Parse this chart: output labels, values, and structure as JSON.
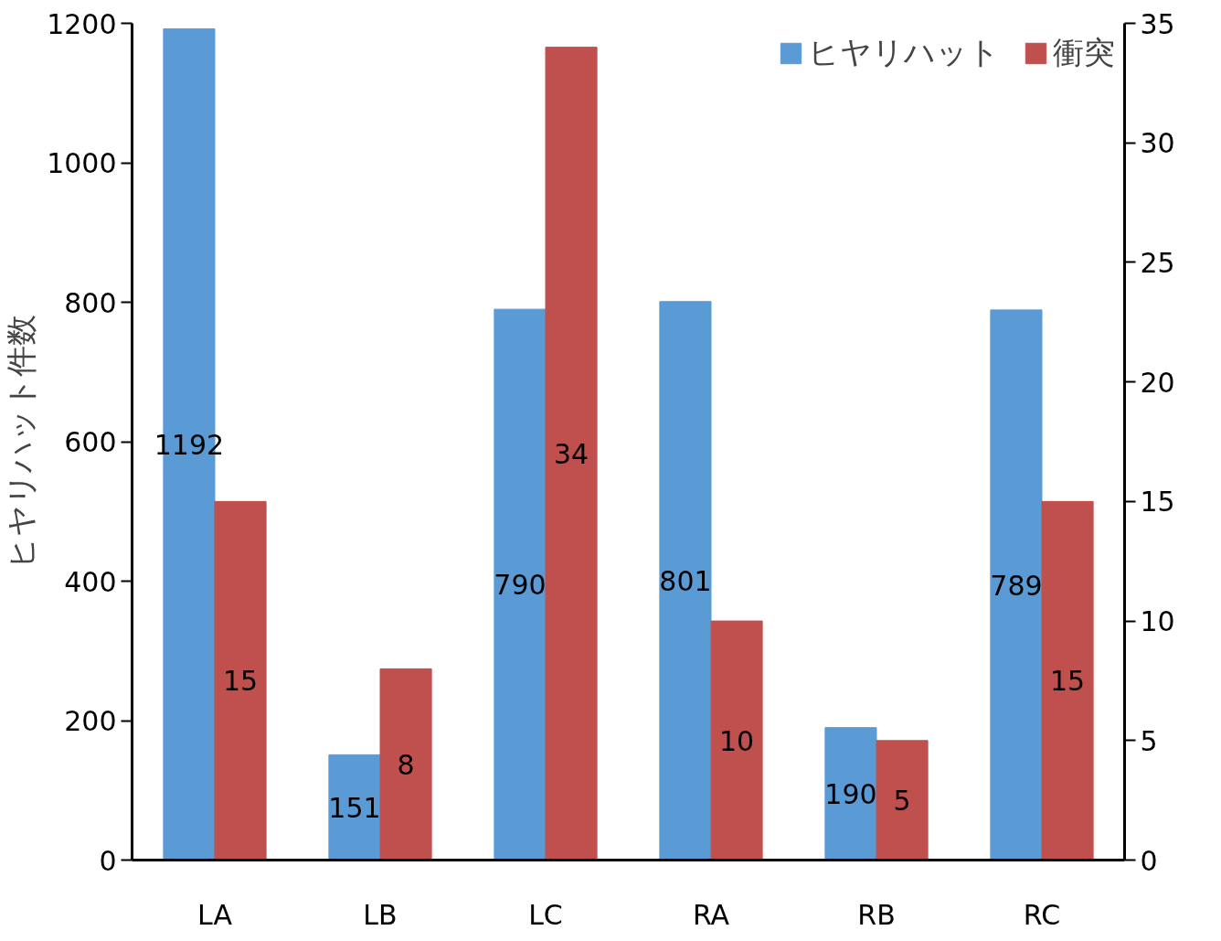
{
  "chart_data": {
    "type": "bar",
    "ylabel": "ヒヤリハット件数",
    "categories": [
      "LA",
      "LB",
      "LC",
      "RA",
      "RB",
      "RC"
    ],
    "series": [
      {
        "name": "ヒヤリハット",
        "color": "#5b9bd5",
        "values": [
          1192,
          151,
          790,
          801,
          190,
          789
        ]
      },
      {
        "name": "衝突",
        "color": "#c0504d",
        "values": [
          15,
          8,
          34,
          10,
          5,
          15
        ],
        "axis": "y2"
      }
    ],
    "ylim": [
      0,
      1200
    ],
    "yticks": [
      0,
      200,
      400,
      600,
      800,
      1000,
      1200
    ],
    "y2lim": [
      0,
      35
    ],
    "y2ticks": [
      0,
      5,
      10,
      15,
      20,
      25,
      30,
      35
    ],
    "data_labels": true,
    "legend": "top right",
    "grid": false
  }
}
